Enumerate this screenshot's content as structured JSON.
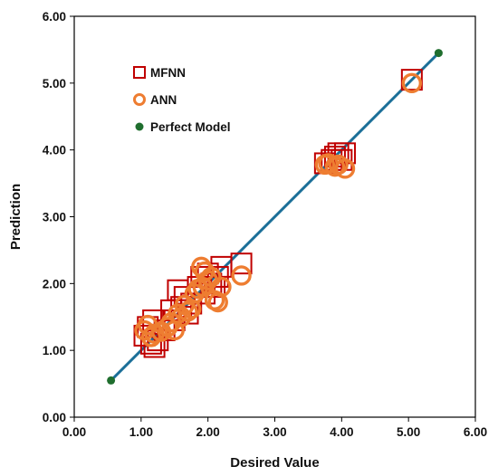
{
  "chart_data": {
    "type": "scatter",
    "xlabel": "Desired Value",
    "ylabel": "Prediction",
    "xlim": [
      0,
      6
    ],
    "ylim": [
      0,
      6
    ],
    "x_ticks": [
      "0.00",
      "1.00",
      "2.00",
      "3.00",
      "4.00",
      "5.00",
      "6.00"
    ],
    "y_ticks": [
      "0.00",
      "1.00",
      "2.00",
      "3.00",
      "4.00",
      "5.00",
      "6.00"
    ],
    "grid": false,
    "legend_position": "top-left",
    "series": [
      {
        "name": "MFNN",
        "marker": "square-open",
        "color": "#c00000",
        "points": [
          [
            1.05,
            1.22
          ],
          [
            1.1,
            1.35
          ],
          [
            1.15,
            1.1
          ],
          [
            1.18,
            1.45
          ],
          [
            1.2,
            1.05
          ],
          [
            1.25,
            1.15
          ],
          [
            1.35,
            1.3
          ],
          [
            1.45,
            1.6
          ],
          [
            1.5,
            1.45
          ],
          [
            1.55,
            1.9
          ],
          [
            1.6,
            1.65
          ],
          [
            1.65,
            1.8
          ],
          [
            1.7,
            1.55
          ],
          [
            1.75,
            1.7
          ],
          [
            1.85,
            1.95
          ],
          [
            1.9,
            2.1
          ],
          [
            1.95,
            1.85
          ],
          [
            2.0,
            2.15
          ],
          [
            2.05,
            2.0
          ],
          [
            2.1,
            1.95
          ],
          [
            2.15,
            2.1
          ],
          [
            2.2,
            2.25
          ],
          [
            2.5,
            2.3
          ],
          [
            3.75,
            3.8
          ],
          [
            3.85,
            3.85
          ],
          [
            3.9,
            3.9
          ],
          [
            3.95,
            3.95
          ],
          [
            4.0,
            3.85
          ],
          [
            4.05,
            3.95
          ],
          [
            5.05,
            5.05
          ]
        ]
      },
      {
        "name": "ANN",
        "marker": "circle-open",
        "color": "#ee7d31",
        "points": [
          [
            1.05,
            1.3
          ],
          [
            1.1,
            1.38
          ],
          [
            1.15,
            1.2
          ],
          [
            1.2,
            1.25
          ],
          [
            1.3,
            1.28
          ],
          [
            1.4,
            1.35
          ],
          [
            1.45,
            1.42
          ],
          [
            1.5,
            1.3
          ],
          [
            1.55,
            1.55
          ],
          [
            1.6,
            1.5
          ],
          [
            1.65,
            1.68
          ],
          [
            1.7,
            1.58
          ],
          [
            1.75,
            1.62
          ],
          [
            1.8,
            1.85
          ],
          [
            1.85,
            1.92
          ],
          [
            1.9,
            2.25
          ],
          [
            1.92,
            1.95
          ],
          [
            1.95,
            2.18
          ],
          [
            2.0,
            2.05
          ],
          [
            2.05,
            2.1
          ],
          [
            2.1,
            1.75
          ],
          [
            2.15,
            1.72
          ],
          [
            2.2,
            1.95
          ],
          [
            2.5,
            2.12
          ],
          [
            3.75,
            3.78
          ],
          [
            3.8,
            3.8
          ],
          [
            3.9,
            3.75
          ],
          [
            3.95,
            3.78
          ],
          [
            4.05,
            3.72
          ],
          [
            5.05,
            5.0
          ]
        ]
      },
      {
        "name": "Perfect Model",
        "marker": "circle-filled",
        "color": "#1f6e2e",
        "points": [
          [
            0.55,
            0.55
          ],
          [
            5.45,
            5.45
          ]
        ]
      }
    ],
    "reference_line": {
      "from": [
        0.55,
        0.55
      ],
      "to": [
        5.45,
        5.45
      ],
      "color": "#1b6f98"
    }
  }
}
